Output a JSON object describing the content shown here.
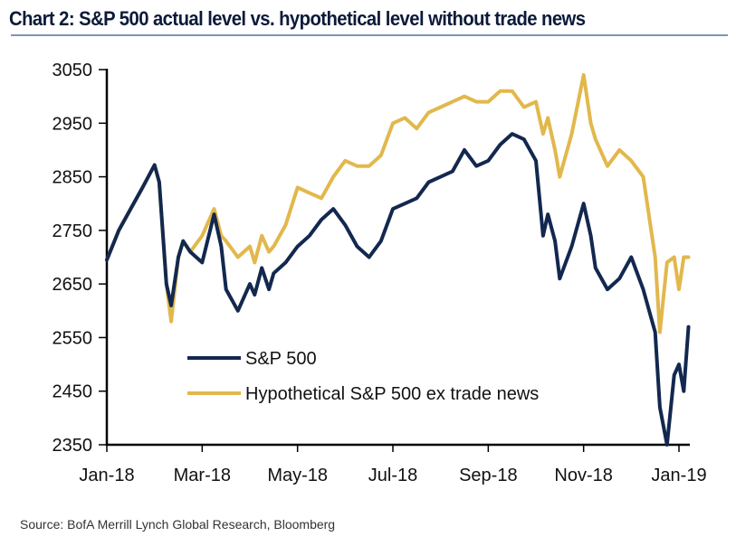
{
  "title": "Chart 2: S&P 500 actual level vs. hypothetical level without trade news",
  "source": "Source:  BofA Merrill Lynch Global Research, Bloomberg",
  "chart_data": {
    "type": "line",
    "title": "Chart 2: S&P 500 actual level vs. hypothetical level without trade news",
    "xlabel": "",
    "ylabel": "",
    "ylim": [
      2350,
      3050
    ],
    "yticks": [
      2350,
      2450,
      2550,
      2650,
      2750,
      2850,
      2950,
      3050
    ],
    "xticks": [
      "Jan-18",
      "Mar-18",
      "May-18",
      "Jul-18",
      "Sep-18",
      "Nov-18",
      "Jan-19"
    ],
    "xrange_months": [
      0,
      12.3
    ],
    "grid": false,
    "legend_position": "bottom-left",
    "colors": {
      "sp500": "#13284f",
      "hypothetical": "#e2b84c"
    },
    "x_months": [
      0,
      0.25,
      0.5,
      0.75,
      1.0,
      1.1,
      1.25,
      1.35,
      1.5,
      1.6,
      1.75,
      2.0,
      2.25,
      2.4,
      2.5,
      2.75,
      3.0,
      3.1,
      3.25,
      3.4,
      3.5,
      3.75,
      4.0,
      4.25,
      4.5,
      4.75,
      5.0,
      5.25,
      5.5,
      5.75,
      6.0,
      6.25,
      6.5,
      6.75,
      7.0,
      7.25,
      7.5,
      7.75,
      8.0,
      8.25,
      8.5,
      8.75,
      9.0,
      9.15,
      9.25,
      9.4,
      9.5,
      9.75,
      10.0,
      10.15,
      10.25,
      10.5,
      10.75,
      11.0,
      11.25,
      11.5,
      11.6,
      11.75,
      11.9,
      12.0,
      12.1,
      12.2
    ],
    "series": [
      {
        "name": "S&P 500",
        "values": [
          2695,
          2750,
          2790,
          2830,
          2872,
          2840,
          2650,
          2610,
          2700,
          2730,
          2710,
          2690,
          2780,
          2720,
          2640,
          2600,
          2650,
          2630,
          2680,
          2640,
          2670,
          2690,
          2720,
          2740,
          2770,
          2790,
          2760,
          2720,
          2700,
          2730,
          2790,
          2800,
          2810,
          2840,
          2850,
          2860,
          2900,
          2870,
          2880,
          2910,
          2930,
          2920,
          2880,
          2740,
          2780,
          2730,
          2660,
          2720,
          2800,
          2740,
          2680,
          2640,
          2660,
          2700,
          2640,
          2560,
          2420,
          2350,
          2480,
          2500,
          2450,
          2570
        ]
      },
      {
        "name": "Hypothetical S&P 500 ex trade news",
        "values": [
          2695,
          2750,
          2790,
          2830,
          2872,
          2840,
          2650,
          2580,
          2700,
          2730,
          2710,
          2740,
          2790,
          2740,
          2730,
          2700,
          2720,
          2690,
          2740,
          2710,
          2720,
          2760,
          2830,
          2820,
          2810,
          2850,
          2880,
          2870,
          2870,
          2890,
          2950,
          2960,
          2940,
          2970,
          2980,
          2990,
          3000,
          2990,
          2990,
          3010,
          3010,
          2980,
          2990,
          2930,
          2960,
          2900,
          2850,
          2930,
          3040,
          2950,
          2920,
          2870,
          2900,
          2880,
          2850,
          2700,
          2560,
          2690,
          2700,
          2640,
          2700,
          2700
        ]
      }
    ]
  },
  "legend": [
    {
      "label": "S&P 500"
    },
    {
      "label": "Hypothetical S&P 500 ex trade news"
    }
  ]
}
